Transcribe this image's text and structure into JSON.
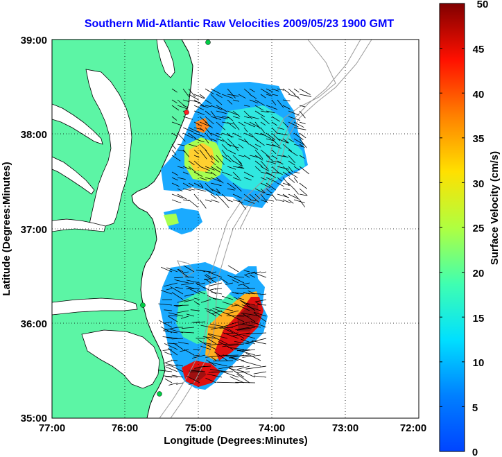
{
  "title": "Southern Mid-Atlantic Raw Velocities 2009/05/23 1900 GMT",
  "x_axis": {
    "label": "Longitude (Degrees:Minutes)",
    "ticks": [
      "77:00",
      "76:00",
      "75:00",
      "74:00",
      "73:00",
      "72:00"
    ]
  },
  "y_axis": {
    "label": "Latitude (Degrees:Minutes)",
    "ticks": [
      "39:00",
      "38:00",
      "37:00",
      "36:00",
      "35:00"
    ]
  },
  "colorbar": {
    "label": "Surface Velocity (cm/s)",
    "ticks": [
      "50",
      "45",
      "40",
      "35",
      "30",
      "25",
      "20",
      "15",
      "10",
      "5",
      "0"
    ],
    "min": 0,
    "max": 50
  },
  "colors": {
    "land": "#5cf5a5",
    "title": "#0000ff",
    "bathymetry": "#999999",
    "station": "#00cc44",
    "station_alt": "#ff2020"
  },
  "grid": "dotted"
}
